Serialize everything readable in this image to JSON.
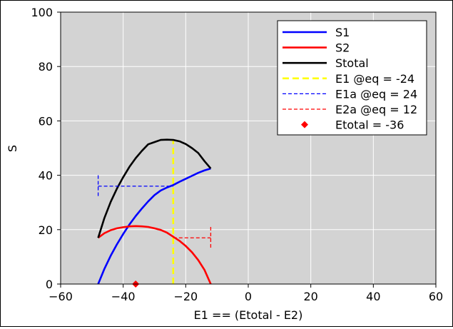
{
  "chart_data": {
    "type": "line",
    "title": "",
    "xlabel": "E1 == (Etotal - E2)",
    "ylabel": "S",
    "xlim": [
      -60,
      60
    ],
    "ylim": [
      0,
      100
    ],
    "xticks": [
      -60,
      -40,
      -20,
      0,
      20,
      40,
      60
    ],
    "yticks": [
      0,
      20,
      40,
      60,
      80,
      100
    ],
    "x_tick_labels": [
      "−60",
      "−40",
      "−20",
      "0",
      "20",
      "40",
      "60"
    ],
    "y_tick_labels": [
      "0",
      "20",
      "40",
      "60",
      "80",
      "100"
    ],
    "grid": true,
    "plot_background": "#d3d3d3",
    "grid_color": "#ffffff",
    "legend_position": "top-right",
    "series": [
      {
        "name": "S1",
        "color": "#0000ff",
        "style": "solid",
        "x": [
          -48,
          -46,
          -44,
          -42,
          -40,
          -38,
          -36,
          -34,
          -32,
          -30,
          -28,
          -26,
          -24,
          -22,
          -20,
          -18,
          -16,
          -14,
          -12
        ],
        "y": [
          0,
          5.6,
          10.4,
          14.6,
          18.4,
          21.9,
          25.0,
          27.8,
          30.4,
          32.7,
          34.4,
          35.5,
          36.4,
          37.6,
          38.7,
          39.8,
          40.9,
          41.8,
          42.5
        ]
      },
      {
        "name": "S2",
        "color": "#ff0000",
        "style": "solid",
        "x": [
          -48,
          -46,
          -44,
          -42,
          -40,
          -38,
          -36,
          -34,
          -32,
          -30,
          -28,
          -26,
          -24,
          -22,
          -20,
          -18,
          -16,
          -14,
          -12
        ],
        "y": [
          17.0,
          18.7,
          19.8,
          20.5,
          20.9,
          21.2,
          21.3,
          21.2,
          21.0,
          20.5,
          19.9,
          18.9,
          17.4,
          15.9,
          14.0,
          11.7,
          8.8,
          5.2,
          0
        ]
      },
      {
        "name": "Stotal",
        "color": "#000000",
        "style": "solid",
        "x": [
          -48,
          -46,
          -44,
          -42,
          -40,
          -38,
          -36,
          -34,
          -32,
          -30,
          -28,
          -26,
          -24,
          -22,
          -20,
          -18,
          -16,
          -14,
          -12
        ],
        "y": [
          17.0,
          24.3,
          30.2,
          35.1,
          39.3,
          43.1,
          46.3,
          49.0,
          51.4,
          52.2,
          53.0,
          53.1,
          53.0,
          52.5,
          51.5,
          50.0,
          48.2,
          45.2,
          42.5
        ]
      },
      {
        "name": "E1 @eq = -24",
        "color": "#ffff00",
        "style": "dashed",
        "x": [
          -24,
          -24
        ],
        "y": [
          0,
          53.1
        ]
      },
      {
        "name": "E1a @eq = 24",
        "color": "#0000ff",
        "style": "dashed-errorbar",
        "x": [
          -48,
          -24
        ],
        "y": [
          36.0,
          36.0
        ],
        "cap_at": -48,
        "cap_half_height": 4
      },
      {
        "name": "E2a @eq = 12",
        "color": "#ff0000",
        "style": "dashed-errorbar",
        "x": [
          -24,
          -12
        ],
        "y": [
          17.0,
          17.0
        ],
        "cap_at": -12,
        "cap_half_height": 4
      },
      {
        "name": "Etotal = -36",
        "color": "#ff0000",
        "style": "marker-diamond",
        "x": [
          -36
        ],
        "y": [
          0
        ]
      }
    ]
  }
}
